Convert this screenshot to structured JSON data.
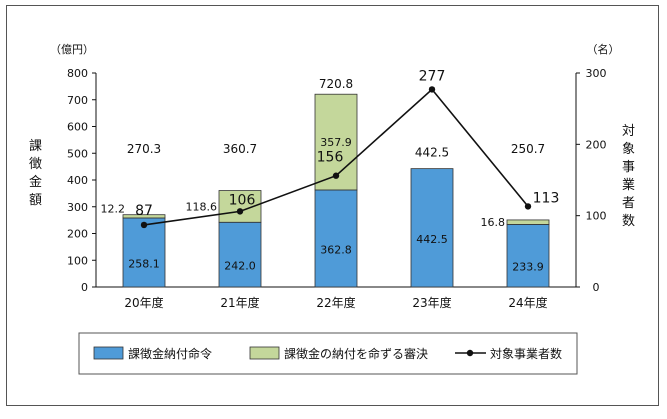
{
  "chart_data": {
    "type": "bar",
    "categories": [
      "20年度",
      "21年度",
      "22年度",
      "23年度",
      "24年度"
    ],
    "y_left": {
      "unit": "（億円）",
      "label": "課徴金額",
      "ylim": [
        0,
        800
      ],
      "ticks": [
        0,
        100,
        200,
        300,
        400,
        500,
        600,
        700,
        800
      ]
    },
    "y_right": {
      "unit": "（名）",
      "label": "対象事業者数",
      "ylim": [
        0,
        300
      ],
      "ticks": [
        0,
        100,
        200,
        300
      ]
    },
    "series": [
      {
        "name": "課徴金納付命令",
        "kind": "bar",
        "stack": "main",
        "color": "#4f9bd8",
        "values": [
          258.1,
          242.0,
          362.8,
          442.5,
          233.9
        ],
        "labels": [
          "258.1",
          "242.0",
          "362.8",
          "442.5",
          "233.9"
        ]
      },
      {
        "name": "課徴金の納付を命ずる審決",
        "kind": "bar",
        "stack": "main",
        "color": "#c4d79b",
        "values": [
          12.2,
          118.6,
          357.9,
          0,
          16.8
        ],
        "labels": [
          "12.2",
          "118.6",
          "357.9",
          "",
          "16.8"
        ]
      },
      {
        "name": "対象事業者数",
        "kind": "line",
        "axis": "right",
        "color": "#111111",
        "values": [
          87,
          106,
          156,
          277,
          113
        ],
        "labels": [
          "87",
          "106",
          "156",
          "277",
          "113"
        ]
      }
    ],
    "totals": [
      "270.3",
      "360.7",
      "720.8",
      "442.5",
      "250.7"
    ],
    "grid": false,
    "legend": "bottom"
  }
}
